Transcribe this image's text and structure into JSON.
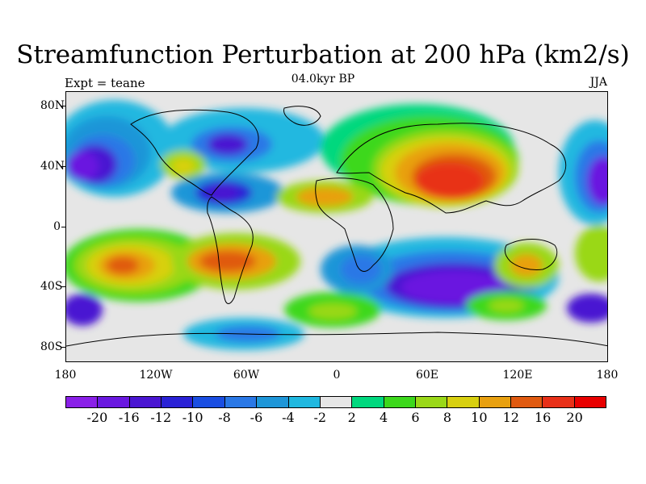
{
  "title": "Streamfunction Perturbation at 200 hPa (km2/s)",
  "subtitle": "04.0kyr BP",
  "left_label": "Expt = teane",
  "right_label": "JJA",
  "lat_labels": [
    "80N",
    "40N",
    "0",
    "40S",
    "80S"
  ],
  "lon_labels": [
    "180",
    "120W",
    "60W",
    "0",
    "60E",
    "120E",
    "180"
  ],
  "colorbar": {
    "labels": [
      "-20",
      "-16",
      "-12",
      "-10",
      "-8",
      "-6",
      "-4",
      "-2",
      "2",
      "4",
      "6",
      "8",
      "10",
      "12",
      "16",
      "20"
    ],
    "colors": [
      "#8a20e8",
      "#6a18e0",
      "#4a16d2",
      "#2a22d6",
      "#1a4ee2",
      "#2a78e6",
      "#1e96d8",
      "#20b8e0",
      "#e6e6e6",
      "#00d87e",
      "#3cd81c",
      "#9ad818",
      "#d8d010",
      "#e8a010",
      "#e05a10",
      "#e83018",
      "#e80000"
    ]
  }
}
